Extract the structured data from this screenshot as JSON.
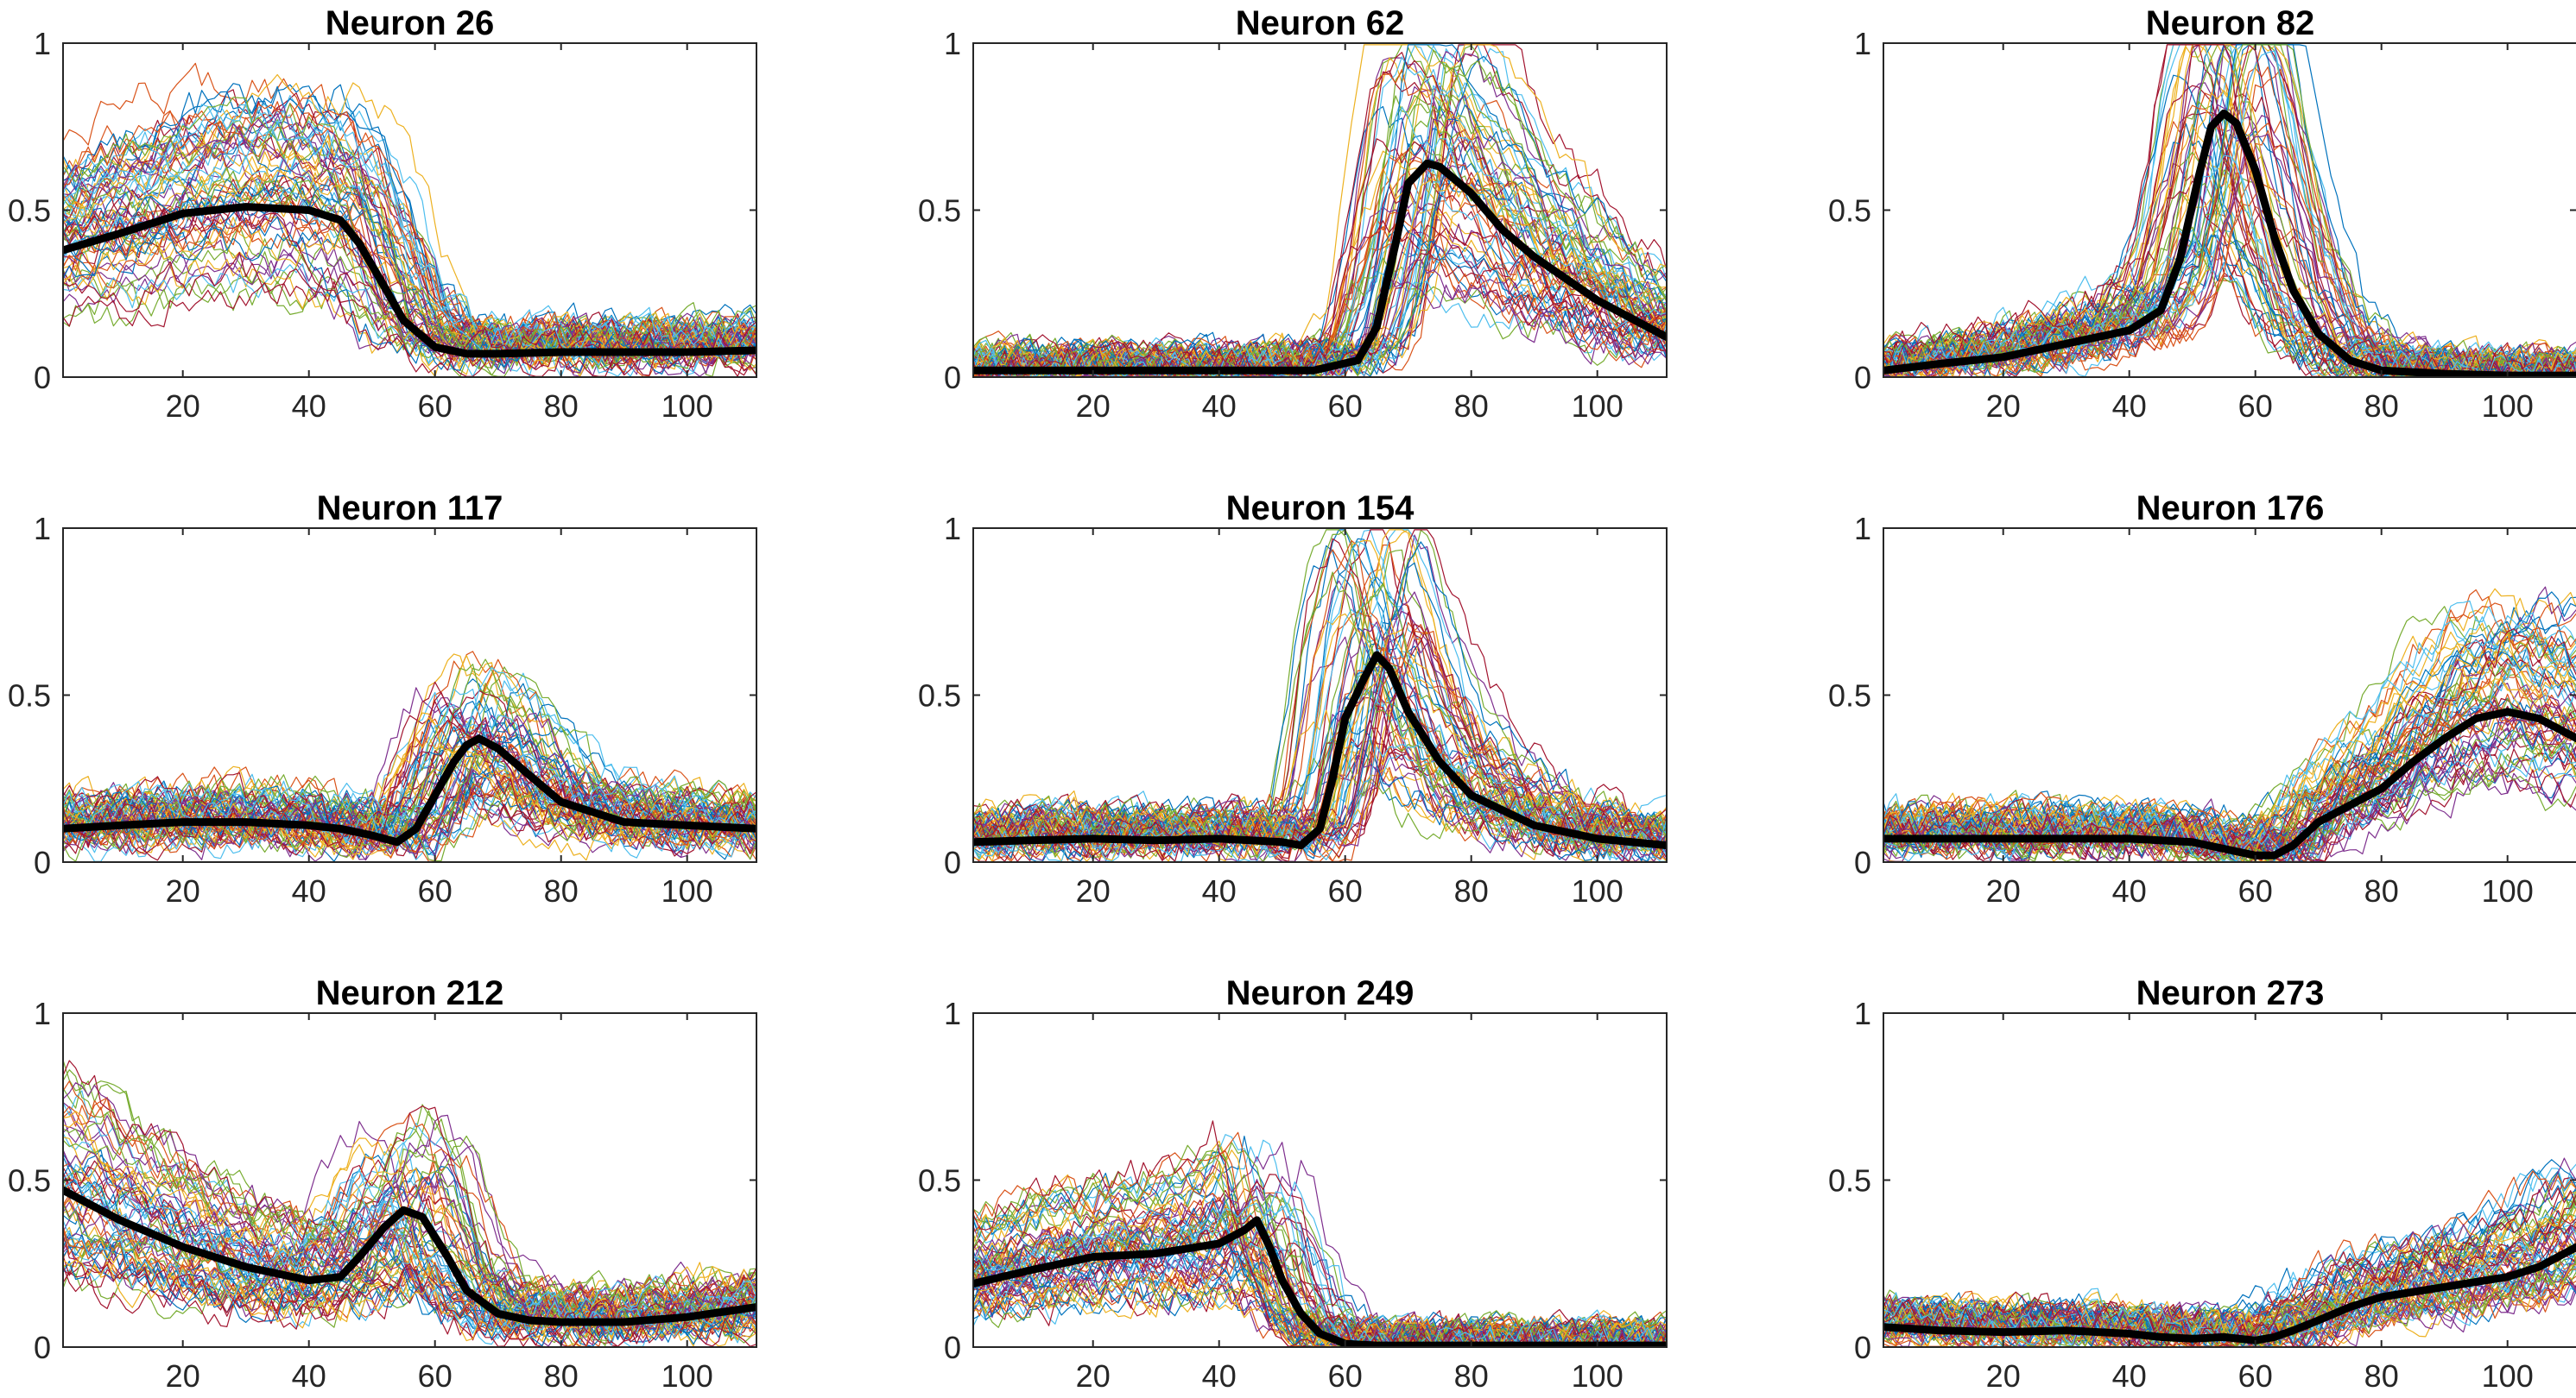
{
  "chart_data": {
    "type": "line",
    "grid": false,
    "xlim": [
      1,
      111
    ],
    "ylim": [
      0,
      1
    ],
    "xticks": [
      20,
      40,
      60,
      80,
      100
    ],
    "yticks": [
      0,
      0.5,
      1
    ],
    "xtick_labels": [
      "20",
      "40",
      "60",
      "80",
      "100"
    ],
    "ytick_labels": [
      "0",
      "0.5",
      "1"
    ],
    "trial_colors": [
      "#0072BD",
      "#D95319",
      "#EDB120",
      "#7E2F8E",
      "#77AC30",
      "#4DBEEE",
      "#A2142F"
    ],
    "mean_color": "#000000",
    "panels": [
      {
        "title": "Neuron 26",
        "mean": {
          "x": [
            1,
            10,
            20,
            30,
            40,
            45,
            48,
            52,
            55,
            60,
            65,
            70,
            80,
            90,
            100,
            111
          ],
          "y": [
            0.38,
            0.43,
            0.49,
            0.51,
            0.5,
            0.47,
            0.4,
            0.27,
            0.17,
            0.09,
            0.07,
            0.07,
            0.075,
            0.075,
            0.075,
            0.08
          ]
        }
      },
      {
        "title": "Neuron 62",
        "mean": {
          "x": [
            1,
            20,
            40,
            55,
            62,
            65,
            68,
            70,
            73,
            75,
            80,
            85,
            90,
            100,
            111
          ],
          "y": [
            0.02,
            0.02,
            0.02,
            0.02,
            0.05,
            0.15,
            0.4,
            0.58,
            0.64,
            0.63,
            0.55,
            0.44,
            0.36,
            0.23,
            0.12
          ]
        }
      },
      {
        "title": "Neuron 82",
        "mean": {
          "x": [
            1,
            10,
            20,
            30,
            40,
            45,
            48,
            51,
            53,
            55,
            57,
            60,
            63,
            66,
            70,
            75,
            80,
            90,
            100,
            111
          ],
          "y": [
            0.02,
            0.04,
            0.06,
            0.1,
            0.14,
            0.2,
            0.35,
            0.6,
            0.75,
            0.79,
            0.76,
            0.62,
            0.42,
            0.26,
            0.13,
            0.05,
            0.02,
            0.01,
            0.005,
            0.005
          ]
        }
      },
      {
        "title": "Neuron 117",
        "mean": {
          "x": [
            1,
            10,
            20,
            30,
            40,
            45,
            50,
            54,
            57,
            60,
            63,
            65,
            67,
            70,
            75,
            80,
            90,
            100,
            111
          ],
          "y": [
            0.1,
            0.11,
            0.12,
            0.12,
            0.11,
            0.1,
            0.08,
            0.06,
            0.1,
            0.2,
            0.3,
            0.35,
            0.37,
            0.34,
            0.26,
            0.18,
            0.12,
            0.11,
            0.1
          ]
        }
      },
      {
        "title": "Neuron 154",
        "mean": {
          "x": [
            1,
            10,
            20,
            30,
            40,
            45,
            50,
            53,
            56,
            58,
            60,
            63,
            65,
            67,
            70,
            75,
            80,
            90,
            100,
            111
          ],
          "y": [
            0.06,
            0.065,
            0.07,
            0.065,
            0.07,
            0.065,
            0.06,
            0.05,
            0.1,
            0.25,
            0.43,
            0.55,
            0.62,
            0.58,
            0.45,
            0.3,
            0.2,
            0.11,
            0.07,
            0.05
          ]
        }
      },
      {
        "title": "Neuron 176",
        "mean": {
          "x": [
            1,
            10,
            20,
            30,
            40,
            50,
            55,
            60,
            63,
            66,
            70,
            75,
            80,
            85,
            90,
            95,
            100,
            105,
            111
          ],
          "y": [
            0.07,
            0.07,
            0.07,
            0.07,
            0.07,
            0.06,
            0.04,
            0.02,
            0.02,
            0.05,
            0.12,
            0.17,
            0.22,
            0.3,
            0.37,
            0.43,
            0.45,
            0.43,
            0.37
          ]
        }
      },
      {
        "title": "Neuron 212",
        "mean": {
          "x": [
            1,
            10,
            20,
            30,
            40,
            45,
            48,
            52,
            55,
            58,
            62,
            65,
            70,
            75,
            80,
            90,
            100,
            111
          ],
          "y": [
            0.47,
            0.38,
            0.3,
            0.24,
            0.2,
            0.21,
            0.27,
            0.36,
            0.41,
            0.39,
            0.27,
            0.17,
            0.1,
            0.08,
            0.075,
            0.075,
            0.09,
            0.12
          ]
        }
      },
      {
        "title": "Neuron 249",
        "mean": {
          "x": [
            1,
            10,
            20,
            30,
            40,
            44,
            46,
            48,
            50,
            53,
            56,
            60,
            65,
            70,
            80,
            90,
            100,
            111
          ],
          "y": [
            0.19,
            0.23,
            0.27,
            0.28,
            0.31,
            0.35,
            0.38,
            0.3,
            0.2,
            0.1,
            0.04,
            0.01,
            0.005,
            0.005,
            0.005,
            0.005,
            0.005,
            0.005
          ]
        }
      },
      {
        "title": "Neuron 273",
        "mean": {
          "x": [
            1,
            10,
            20,
            30,
            40,
            45,
            50,
            55,
            60,
            63,
            66,
            70,
            75,
            80,
            90,
            100,
            105,
            111
          ],
          "y": [
            0.06,
            0.05,
            0.045,
            0.05,
            0.04,
            0.03,
            0.025,
            0.03,
            0.02,
            0.03,
            0.05,
            0.08,
            0.12,
            0.15,
            0.18,
            0.21,
            0.24,
            0.3
          ]
        }
      }
    ]
  }
}
